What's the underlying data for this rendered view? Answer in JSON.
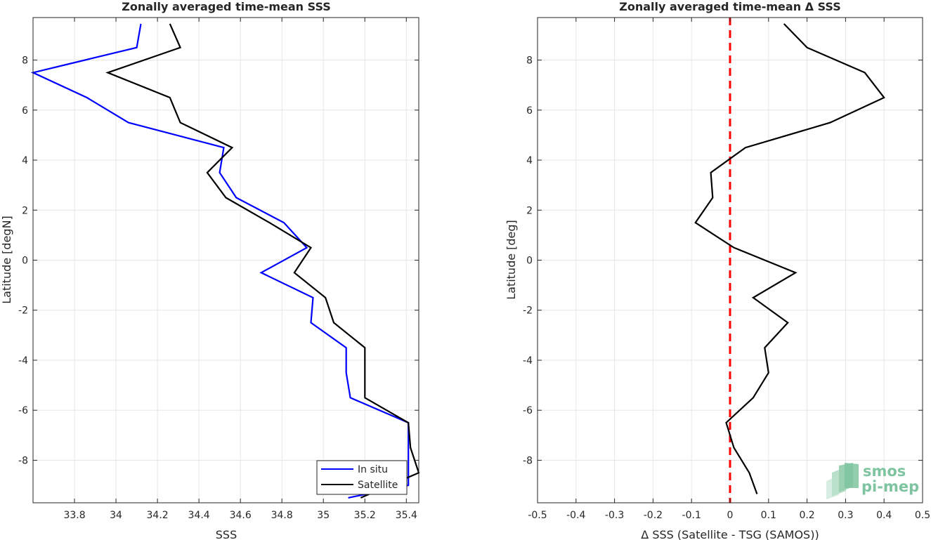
{
  "chart_data": [
    {
      "type": "line",
      "title": "Zonally averaged time-mean SSS",
      "xlabel": "SSS",
      "ylabel": "Latitude [degN]",
      "xlim": [
        33.6,
        35.46
      ],
      "ylim": [
        -9.7,
        9.7
      ],
      "xticks": [
        33.8,
        34,
        34.2,
        34.4,
        34.6,
        34.8,
        35,
        35.2,
        35.4
      ],
      "xtick_labels": [
        "33.8",
        "34",
        "34.2",
        "34.4",
        "34.6",
        "34.8",
        "35",
        "35.2",
        "35.4"
      ],
      "yticks": [
        -8,
        -6,
        -4,
        -2,
        0,
        2,
        4,
        6,
        8
      ],
      "ytick_labels": [
        "-8",
        "-6",
        "-4",
        "-2",
        "0",
        "2",
        "4",
        "6",
        "8"
      ],
      "grid": true,
      "legend": "bottom-right",
      "series": [
        {
          "name": "In situ",
          "color": "#0000ff",
          "points": [
            [
              34.12,
              9.45
            ],
            [
              34.1,
              8.5
            ],
            [
              33.6,
              7.5
            ],
            [
              33.86,
              6.5
            ],
            [
              34.06,
              5.5
            ],
            [
              34.52,
              4.5
            ],
            [
              34.5,
              3.5
            ],
            [
              34.58,
              2.5
            ],
            [
              34.81,
              1.5
            ],
            [
              34.92,
              0.5
            ],
            [
              34.7,
              -0.5
            ],
            [
              34.95,
              -1.5
            ],
            [
              34.94,
              -2.5
            ],
            [
              35.11,
              -3.5
            ],
            [
              35.11,
              -4.5
            ],
            [
              35.13,
              -5.5
            ],
            [
              35.41,
              -6.5
            ],
            [
              35.41,
              -7.5
            ],
            [
              35.41,
              -8.5
            ],
            [
              35.41,
              -9.0
            ],
            [
              35.12,
              -9.5
            ]
          ]
        },
        {
          "name": "Satellite",
          "color": "#000000",
          "points": [
            [
              34.26,
              9.45
            ],
            [
              34.31,
              8.5
            ],
            [
              33.96,
              7.5
            ],
            [
              34.26,
              6.5
            ],
            [
              34.31,
              5.5
            ],
            [
              34.56,
              4.5
            ],
            [
              34.44,
              3.5
            ],
            [
              34.53,
              2.5
            ],
            [
              34.74,
              1.5
            ],
            [
              34.94,
              0.5
            ],
            [
              34.86,
              -0.5
            ],
            [
              35.01,
              -1.5
            ],
            [
              35.05,
              -2.5
            ],
            [
              35.2,
              -3.5
            ],
            [
              35.2,
              -4.5
            ],
            [
              35.2,
              -5.5
            ],
            [
              35.41,
              -6.5
            ],
            [
              35.42,
              -7.5
            ],
            [
              35.46,
              -8.5
            ],
            [
              35.18,
              -9.5
            ]
          ]
        }
      ]
    },
    {
      "type": "line",
      "title": "Zonally averaged time-mean Δ SSS",
      "xlabel": "Δ SSS (Satellite - TSG (SAMOS))",
      "ylabel": "Latitude [deg]",
      "xlim": [
        -0.5,
        0.5
      ],
      "ylim": [
        -9.7,
        9.7
      ],
      "xticks": [
        -0.5,
        -0.4,
        -0.3,
        -0.2,
        -0.1,
        0,
        0.1,
        0.2,
        0.3,
        0.4,
        0.5
      ],
      "xtick_labels": [
        "-0.5",
        "-0.4",
        "-0.3",
        "-0.2",
        "-0.1",
        "0",
        "0.1",
        "0.2",
        "0.3",
        "0.4",
        "0.5"
      ],
      "yticks": [
        -8,
        -6,
        -4,
        -2,
        0,
        2,
        4,
        6,
        8
      ],
      "ytick_labels": [
        "-8",
        "-6",
        "-4",
        "-2",
        "0",
        "2",
        "4",
        "6",
        "8"
      ],
      "grid": true,
      "reference_line": {
        "x": 0,
        "color": "#ff0000",
        "style": "dashed"
      },
      "series": [
        {
          "color": "#000000",
          "points": [
            [
              0.14,
              9.45
            ],
            [
              0.2,
              8.5
            ],
            [
              0.35,
              7.5
            ],
            [
              0.4,
              6.5
            ],
            [
              0.26,
              5.5
            ],
            [
              0.04,
              4.5
            ],
            [
              -0.05,
              3.5
            ],
            [
              -0.045,
              2.5
            ],
            [
              -0.09,
              1.5
            ],
            [
              0.01,
              0.5
            ],
            [
              0.17,
              -0.5
            ],
            [
              0.06,
              -1.5
            ],
            [
              0.15,
              -2.5
            ],
            [
              0.09,
              -3.5
            ],
            [
              0.1,
              -4.5
            ],
            [
              0.06,
              -5.5
            ],
            [
              -0.01,
              -6.5
            ],
            [
              0.01,
              -7.5
            ],
            [
              0.05,
              -8.5
            ],
            [
              0.07,
              -9.35
            ]
          ]
        }
      ]
    }
  ],
  "logo": {
    "line1": "smos",
    "line2": "pi-mep"
  }
}
